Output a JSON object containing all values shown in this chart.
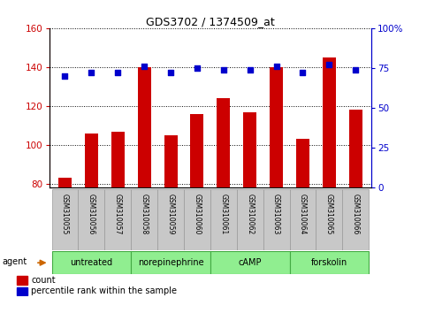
{
  "title": "GDS3702 / 1374509_at",
  "samples": [
    "GSM310055",
    "GSM310056",
    "GSM310057",
    "GSM310058",
    "GSM310059",
    "GSM310060",
    "GSM310061",
    "GSM310062",
    "GSM310063",
    "GSM310064",
    "GSM310065",
    "GSM310066"
  ],
  "counts": [
    83,
    106,
    107,
    140,
    105,
    116,
    124,
    117,
    140,
    103,
    145,
    118
  ],
  "percentiles": [
    70,
    72,
    72,
    76,
    72,
    75,
    74,
    74,
    76,
    72,
    77,
    74
  ],
  "ylim_left": [
    78,
    160
  ],
  "ylim_right": [
    0,
    100
  ],
  "yticks_left": [
    80,
    100,
    120,
    140,
    160
  ],
  "yticks_right": [
    0,
    25,
    50,
    75,
    100
  ],
  "groups": [
    {
      "label": "untreated",
      "start": 0,
      "end": 3
    },
    {
      "label": "norepinephrine",
      "start": 3,
      "end": 6
    },
    {
      "label": "cAMP",
      "start": 6,
      "end": 9
    },
    {
      "label": "forskolin",
      "start": 9,
      "end": 12
    }
  ],
  "bar_color": "#cc0000",
  "dot_color": "#0000cc",
  "left_axis_color": "#cc0000",
  "right_axis_color": "#0000cc",
  "group_bg_color": "#90ee90",
  "group_border_color": "#44aa44",
  "sample_bg_color": "#c8c8c8",
  "sample_border_color": "#999999",
  "agent_arrow_color": "#cc6600",
  "fig_width": 4.83,
  "fig_height": 3.54,
  "dpi": 100
}
